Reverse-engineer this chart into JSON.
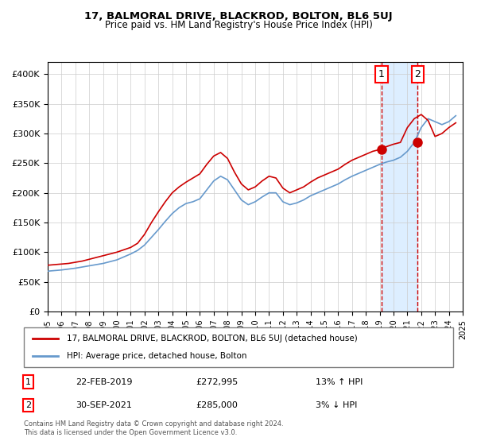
{
  "title": "17, BALMORAL DRIVE, BLACKROD, BOLTON, BL6 5UJ",
  "subtitle": "Price paid vs. HM Land Registry's House Price Index (HPI)",
  "legend_line1": "17, BALMORAL DRIVE, BLACKROD, BOLTON, BL6 5UJ (detached house)",
  "legend_line2": "HPI: Average price, detached house, Bolton",
  "footnote": "Contains HM Land Registry data © Crown copyright and database right 2024.\nThis data is licensed under the Open Government Licence v3.0.",
  "marker1_date": "22-FEB-2019",
  "marker1_price": 272995,
  "marker1_text": "13% ↑ HPI",
  "marker1_x": 2019.13,
  "marker2_date": "30-SEP-2021",
  "marker2_price": 285000,
  "marker2_text": "3% ↓ HPI",
  "marker2_x": 2021.75,
  "red_color": "#cc0000",
  "blue_color": "#6699cc",
  "shade_color": "#ddeeff",
  "ylim": [
    0,
    420000
  ],
  "xlim_start": 1995,
  "xlim_end": 2025,
  "hpi_x": [
    1995,
    1995.5,
    1996,
    1996.5,
    1997,
    1997.5,
    1998,
    1998.5,
    1999,
    1999.5,
    2000,
    2000.5,
    2001,
    2001.5,
    2002,
    2002.5,
    2003,
    2003.5,
    2004,
    2004.5,
    2005,
    2005.5,
    2006,
    2006.5,
    2007,
    2007.5,
    2008,
    2008.5,
    2009,
    2009.5,
    2010,
    2010.5,
    2011,
    2011.5,
    2012,
    2012.5,
    2013,
    2013.5,
    2014,
    2014.5,
    2015,
    2015.5,
    2016,
    2016.5,
    2017,
    2017.5,
    2018,
    2018.5,
    2019,
    2019.5,
    2020,
    2020.5,
    2021,
    2021.5,
    2022,
    2022.5,
    2023,
    2023.5,
    2024,
    2024.5
  ],
  "hpi_y": [
    68000,
    69000,
    70000,
    71500,
    73000,
    75000,
    77000,
    79000,
    81000,
    84000,
    87000,
    92000,
    97000,
    103000,
    112000,
    125000,
    138000,
    152000,
    165000,
    175000,
    182000,
    185000,
    190000,
    205000,
    220000,
    228000,
    222000,
    205000,
    188000,
    180000,
    185000,
    193000,
    200000,
    200000,
    185000,
    180000,
    183000,
    188000,
    195000,
    200000,
    205000,
    210000,
    215000,
    222000,
    228000,
    233000,
    238000,
    243000,
    248000,
    252000,
    255000,
    260000,
    270000,
    285000,
    310000,
    325000,
    320000,
    315000,
    320000,
    330000
  ],
  "price_x": [
    1995,
    1995.5,
    1996,
    1996.5,
    1997,
    1997.5,
    1998,
    1998.5,
    1999,
    1999.5,
    2000,
    2000.5,
    2001,
    2001.5,
    2002,
    2002.5,
    2003,
    2003.5,
    2004,
    2004.5,
    2005,
    2005.5,
    2006,
    2006.5,
    2007,
    2007.5,
    2008,
    2008.5,
    2009,
    2009.5,
    2010,
    2010.5,
    2011,
    2011.5,
    2012,
    2012.5,
    2013,
    2013.5,
    2014,
    2014.5,
    2015,
    2015.5,
    2016,
    2016.5,
    2017,
    2017.5,
    2018,
    2018.5,
    2019,
    2019.5,
    2020,
    2020.5,
    2021,
    2021.5,
    2022,
    2022.5,
    2023,
    2023.5,
    2024,
    2024.5
  ],
  "price_y": [
    78000,
    79000,
    80000,
    81000,
    83000,
    85000,
    88000,
    91000,
    94000,
    97000,
    100000,
    104000,
    108000,
    115000,
    130000,
    150000,
    168000,
    185000,
    200000,
    210000,
    218000,
    225000,
    232000,
    248000,
    262000,
    268000,
    258000,
    235000,
    215000,
    205000,
    210000,
    220000,
    228000,
    225000,
    208000,
    200000,
    205000,
    210000,
    218000,
    225000,
    230000,
    235000,
    240000,
    248000,
    255000,
    260000,
    265000,
    270000,
    272995,
    278000,
    282000,
    285000,
    310000,
    325000,
    332000,
    322000,
    295000,
    300000,
    310000,
    318000
  ]
}
